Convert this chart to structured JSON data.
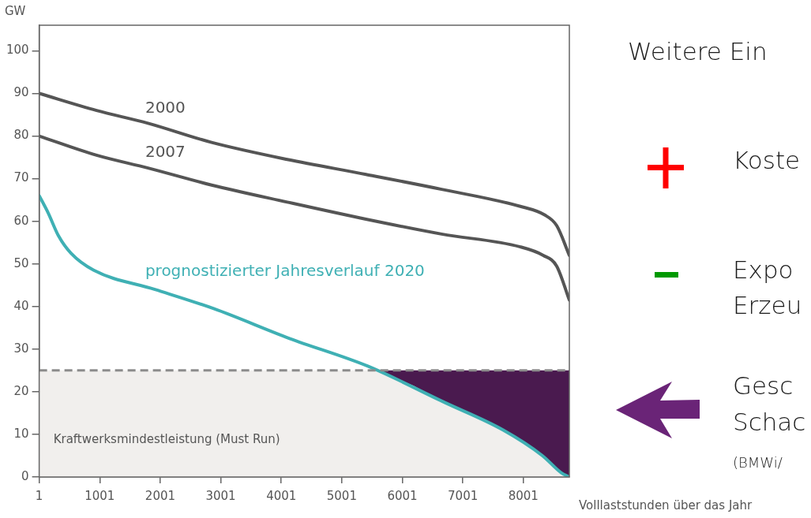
{
  "chart_data": {
    "type": "line",
    "xlabel": "Volllaststunden über das Jahr",
    "ylabel": "GW",
    "xlim": [
      1,
      8760
    ],
    "xticks": [
      1,
      1001,
      2001,
      3001,
      4001,
      5001,
      6001,
      7001,
      8001
    ],
    "ylim": [
      0,
      106
    ],
    "yticks": [
      0,
      10,
      20,
      30,
      40,
      50,
      60,
      70,
      80,
      90,
      100
    ],
    "series": [
      {
        "name": "2000",
        "color": "#555555",
        "x": [
          1,
          950,
          1800,
          2850,
          4100,
          5400,
          6650,
          7950,
          8350,
          8550,
          8760
        ],
        "values": [
          90,
          86,
          83,
          78.5,
          74.5,
          71,
          67.5,
          63.5,
          61.5,
          59,
          52
        ]
      },
      {
        "name": "2007",
        "color": "#555555",
        "x": [
          1,
          950,
          1800,
          2850,
          4100,
          5400,
          6650,
          7950,
          8330,
          8550,
          8760
        ],
        "values": [
          80,
          75.5,
          72.5,
          68.5,
          64.5,
          60.5,
          57,
          54,
          52,
          49.5,
          41.5
        ]
      },
      {
        "type": "area",
        "color": "#4a1a4f",
        "x": [
          5600,
          6200,
          6698,
          7200,
          7668,
          8000,
          8315,
          8500,
          8625,
          8760,
          8760
        ],
        "values": [
          25,
          21.5,
          17.5,
          14.5,
          11,
          8.5,
          5,
          3,
          1,
          0,
          25
        ]
      },
      {
        "name": "prognostizierter Jahresverlauf 2020",
        "color": "#3fb0b4",
        "x": [
          1,
          148,
          323,
          526,
          903,
          1914,
          2884,
          4137,
          5431,
          6698,
          7668,
          8315,
          8625,
          8760
        ],
        "values": [
          66,
          62,
          56.5,
          52.5,
          48.5,
          44,
          39.5,
          32.5,
          26,
          17.5,
          11,
          5,
          1,
          0
        ]
      }
    ],
    "bands": [
      {
        "axis": "y",
        "from": 0,
        "to": 25,
        "label": "Kraftwerksmindestleistung (Must Run)",
        "color": "#f1efed"
      }
    ],
    "ref_lines": [
      {
        "axis": "y",
        "value": 25,
        "color": "#8c8c8c",
        "line_style": "dashed"
      }
    ],
    "annotations": [
      "Weitere Ein",
      "Koste",
      "Expo",
      "Erzeu",
      "Gesc",
      "Schac",
      "(BMWi/"
    ]
  }
}
